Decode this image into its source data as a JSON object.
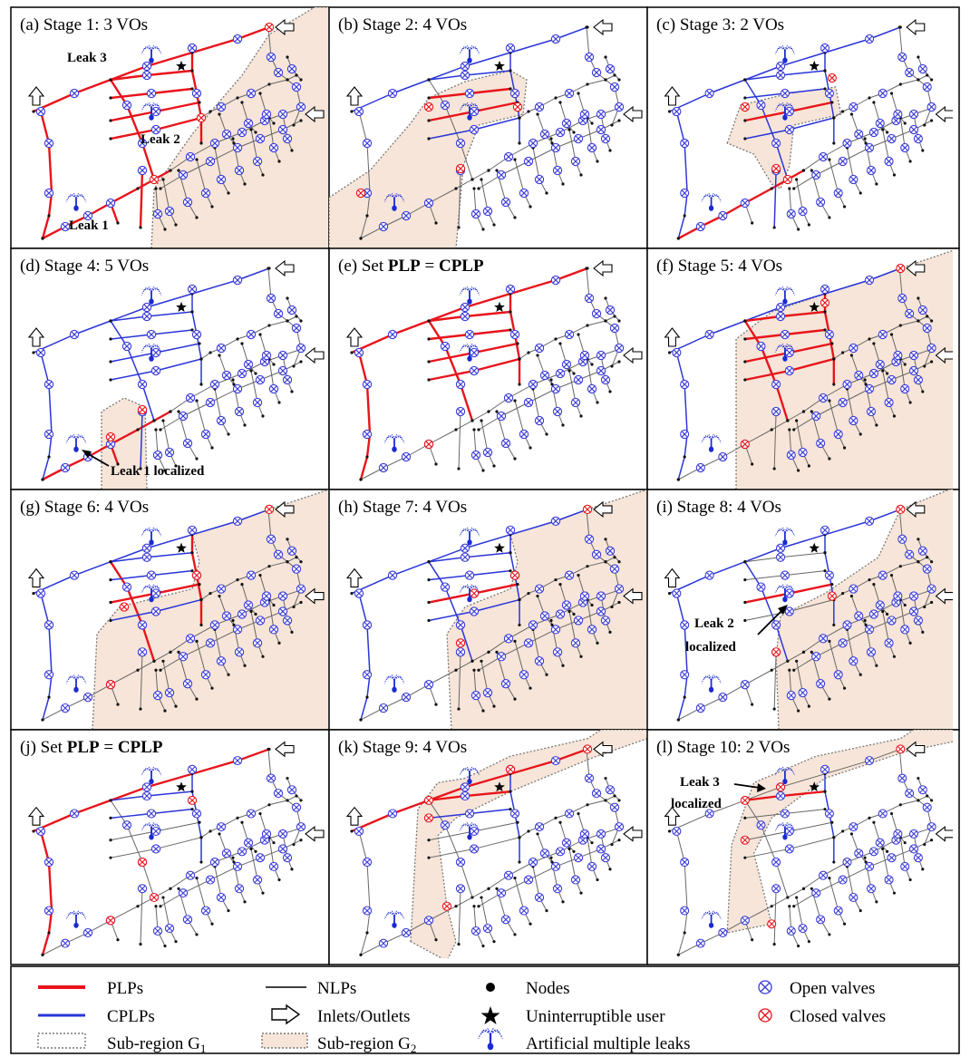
{
  "panels": [
    {
      "title": "(a) Stage 1: 3 VOs",
      "labels": [
        "Leak 3",
        "Leak 2",
        "Leak 1"
      ]
    },
    {
      "title": "(b) Stage 2: 4 VOs",
      "labels": []
    },
    {
      "title": "(c) Stage 3: 2 VOs",
      "labels": []
    },
    {
      "title": "(d) Stage 4: 5 VOs",
      "labels": [
        "Leak 1 localized"
      ]
    },
    {
      "title_parts": [
        "(e) Set ",
        "PLP",
        " = ",
        "CPLP"
      ],
      "labels": []
    },
    {
      "title": "(f) Stage 5: 4 VOs",
      "labels": []
    },
    {
      "title": "(g) Stage 6: 4 VOs",
      "labels": []
    },
    {
      "title": "(h) Stage 7: 4 VOs",
      "labels": []
    },
    {
      "title": "(i) Stage 8: 4 VOs",
      "labels": [
        "Leak 2",
        "localized"
      ]
    },
    {
      "title_parts": [
        "(j) Set ",
        "PLP",
        " = ",
        "CPLP"
      ],
      "labels": []
    },
    {
      "title": "(k) Stage 9: 4 VOs",
      "labels": []
    },
    {
      "title": "(l) Stage 10: 2 VOs",
      "labels": [
        "Leak 3",
        "localized"
      ]
    }
  ],
  "legend": {
    "plps": "PLPs",
    "cplps": "CPLPs",
    "subregion_g1": "Sub-region G",
    "subregion_g1_sub": "1",
    "nlps": "NLPs",
    "inlets_outlets": "Inlets/Outlets",
    "subregion_g2": "Sub-region G",
    "subregion_g2_sub": "2",
    "nodes": "Nodes",
    "uninterruptible_user": "Uninterruptible user",
    "artificial_leaks": "Artificial multiple leaks",
    "open_valves": "Open valves",
    "closed_valves": "Closed valves"
  },
  "colors": {
    "plp": "#e8141b",
    "cplp": "#2a35d8",
    "nlp": "#666666",
    "region_g2": "#f6e5d8",
    "open_valve": "#3b3bd8",
    "closed_valve": "#e8141b"
  }
}
